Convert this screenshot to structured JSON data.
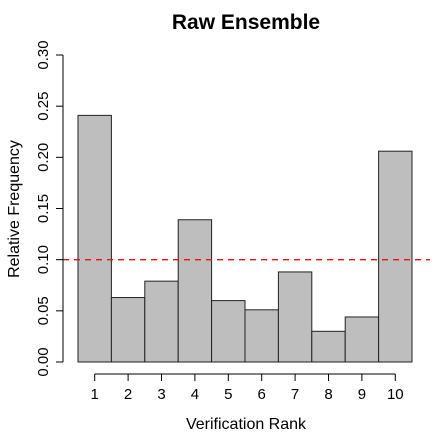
{
  "chart_data": {
    "type": "bar",
    "title": "Raw Ensemble",
    "xlabel": "Verification Rank",
    "ylabel": "Relative Frequency",
    "categories": [
      "1",
      "2",
      "3",
      "4",
      "5",
      "6",
      "7",
      "8",
      "9",
      "10"
    ],
    "values": [
      0.241,
      0.063,
      0.079,
      0.139,
      0.06,
      0.051,
      0.088,
      0.03,
      0.044,
      0.206
    ],
    "ylim": [
      0,
      0.3
    ],
    "yticks": [
      "0.00",
      "0.05",
      "0.10",
      "0.15",
      "0.20",
      "0.25",
      "0.30"
    ],
    "reference_line": {
      "y": 0.1,
      "color": "#ee1111",
      "style": "dashed"
    },
    "bar_color": "#bebebe",
    "grid": false,
    "legend": "none"
  }
}
